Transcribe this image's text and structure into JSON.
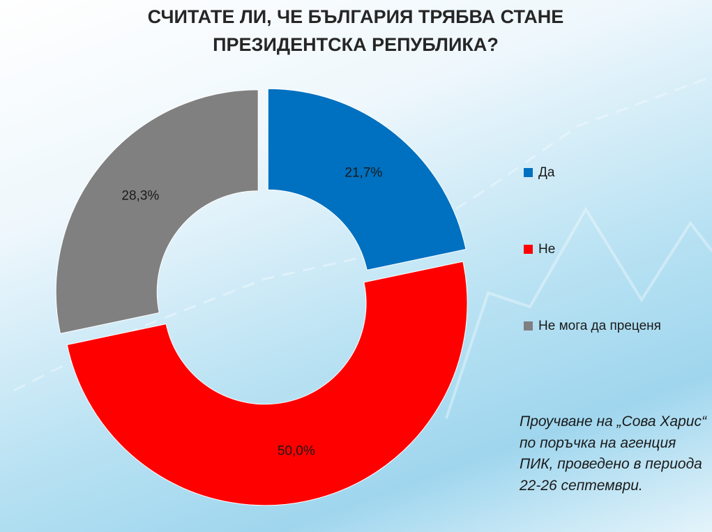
{
  "chart_data": {
    "type": "donut",
    "title": "СЧИТАТЕ ЛИ, ЧЕ БЪЛГАРИЯ ТРЯБВА СТАНЕ ПРЕЗИДЕНТСКА РЕПУБЛИКА?",
    "categories": [
      "Да",
      "Не",
      "Не мога да преценя"
    ],
    "values": [
      21.7,
      50.0,
      28.3
    ],
    "value_labels": [
      "21,7%",
      "50,0%",
      "28,3%"
    ],
    "colors": [
      "#0070c0",
      "#ff0000",
      "#808080"
    ],
    "legend": "right",
    "annotation": "Проучване на „Сова Харис“ по поръчка на агенция ПИК, проведено в периода 22-26 септември."
  }
}
